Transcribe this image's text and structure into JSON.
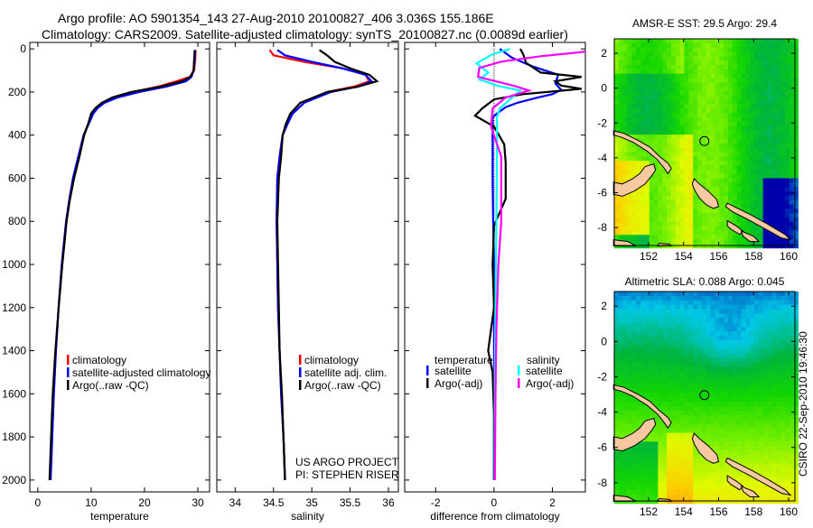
{
  "figure": {
    "title_line1": "Argo profile: AO 5901354_143 27-Aug-2010 20100827_406 3.036S 155.186E",
    "title_line2": "Climatology: CARS2009. Satellite-adjusted climatology: synTS_20100827.nc (0.0089d earlier)",
    "project": "US ARGO PROJECT",
    "pi": "PI: STEPHEN RISER",
    "stamp": "CSIRO 22-Sep-2010 19:46:30"
  },
  "colors": {
    "climatology": "#ff0000",
    "satellite": "#0000ff",
    "argo": "#000000",
    "sal_satellite": "#00ffff",
    "sal_argo": "#ff00ff",
    "land": "#f8c8a0"
  },
  "chart_data": [
    {
      "type": "line",
      "title": "",
      "xlabel": "temperature",
      "ylabel": "",
      "xlim": [
        -1.5,
        32.2
      ],
      "ylim": [
        2055,
        -30
      ],
      "xticks": [
        0,
        10,
        20,
        30
      ],
      "yticks": [
        0,
        200,
        400,
        600,
        800,
        1000,
        1200,
        1400,
        1600,
        1800,
        2000
      ],
      "legend": [
        "climatology",
        "satellite-adjusted climatology",
        "Argo(..raw -QC)"
      ],
      "series": [
        {
          "name": "climatology",
          "color": "#ff0000",
          "depth": [
            5,
            50,
            100,
            130,
            150,
            175,
            200,
            225,
            250,
            275,
            300,
            350,
            400,
            500,
            600,
            700,
            800,
            900,
            1000,
            1200,
            1400,
            1600,
            1800,
            2000
          ],
          "values": [
            29.6,
            29.5,
            29.3,
            28.5,
            26,
            22.5,
            18,
            14.5,
            12.2,
            11,
            10.2,
            9.4,
            8.6,
            7.6,
            6.6,
            5.9,
            5.3,
            4.9,
            4.5,
            3.9,
            3.4,
            3.0,
            2.7,
            2.4
          ]
        },
        {
          "name": "satellite-adjusted climatology",
          "color": "#0000ff",
          "depth": [
            5,
            50,
            100,
            130,
            150,
            175,
            200,
            225,
            250,
            275,
            300,
            350,
            400,
            500,
            600,
            700,
            800,
            900,
            1000,
            1200,
            1400,
            1600,
            1800,
            2000
          ],
          "values": [
            29.5,
            29.4,
            29.2,
            28.8,
            27.8,
            24,
            19,
            15,
            12.5,
            11.2,
            10.4,
            9.5,
            8.6,
            7.6,
            6.6,
            5.9,
            5.3,
            4.9,
            4.5,
            3.9,
            3.4,
            3.0,
            2.7,
            2.4
          ]
        },
        {
          "name": "Argo(..raw -QC)",
          "color": "#000000",
          "depth": [
            5,
            50,
            100,
            130,
            150,
            175,
            200,
            225,
            250,
            275,
            300,
            350,
            400,
            500,
            600,
            700,
            800,
            900,
            1000,
            1200,
            1400,
            1600,
            1800,
            2000
          ],
          "values": [
            29.4,
            29.3,
            29.2,
            28.6,
            27,
            23,
            17.5,
            14,
            12,
            10.8,
            10,
            9.4,
            8.7,
            7.8,
            6.8,
            6.0,
            5.4,
            5.0,
            4.6,
            3.9,
            3.3,
            2.8,
            2.5,
            2.2
          ]
        }
      ]
    },
    {
      "type": "line",
      "xlabel": "salinity",
      "xlim": [
        33.76,
        36.13
      ],
      "ylim": [
        2055,
        -30
      ],
      "xticks": [
        34,
        34.5,
        35,
        35.5,
        36
      ],
      "xticklabels": [
        "34",
        "34.5",
        "35",
        "35.5",
        "36"
      ],
      "yticks": [
        0,
        200,
        400,
        600,
        800,
        1000,
        1200,
        1400,
        1600,
        1800,
        2000
      ],
      "legend": [
        "climatology",
        "satellite adj. clim.",
        "Argo(..raw -QC)"
      ],
      "series": [
        {
          "name": "climatology",
          "color": "#ff0000",
          "depth": [
            5,
            30,
            60,
            90,
            120,
            150,
            175,
            200,
            250,
            300,
            350,
            400,
            500,
            600,
            800,
            1000,
            1200,
            1400,
            1600,
            1800,
            2000
          ],
          "values": [
            34.45,
            34.5,
            34.9,
            35.4,
            35.7,
            35.75,
            35.55,
            35.2,
            34.9,
            34.75,
            34.68,
            34.62,
            34.58,
            34.55,
            34.54,
            34.55,
            34.56,
            34.58,
            34.6,
            34.63,
            34.65
          ]
        },
        {
          "name": "satellite adj. clim.",
          "color": "#0000ff",
          "depth": [
            5,
            30,
            60,
            90,
            120,
            150,
            175,
            200,
            250,
            300,
            350,
            400,
            500,
            600,
            800,
            1000,
            1200,
            1400,
            1600,
            1800,
            2000
          ],
          "values": [
            34.55,
            34.65,
            35.0,
            35.4,
            35.7,
            35.78,
            35.6,
            35.25,
            34.9,
            34.75,
            34.68,
            34.62,
            34.58,
            34.55,
            34.54,
            34.55,
            34.56,
            34.58,
            34.6,
            34.63,
            34.65
          ]
        },
        {
          "name": "Argo(..raw -QC)",
          "color": "#000000",
          "depth": [
            5,
            30,
            60,
            90,
            120,
            150,
            175,
            200,
            250,
            300,
            350,
            400,
            500,
            600,
            800,
            1000,
            1200,
            1400,
            1600,
            1800,
            2000
          ],
          "values": [
            35.1,
            35.2,
            35.3,
            35.5,
            35.75,
            35.85,
            35.6,
            35.2,
            34.85,
            34.72,
            34.66,
            34.62,
            34.6,
            34.57,
            34.55,
            34.56,
            34.57,
            34.58,
            34.61,
            34.63,
            34.65
          ]
        }
      ]
    },
    {
      "type": "line",
      "xlabel": "difference from climatology",
      "xlim": [
        -3.06,
        3.13
      ],
      "ylim": [
        2055,
        -30
      ],
      "xticks": [
        -2,
        0,
        2
      ],
      "yticks": [
        0,
        200,
        400,
        600,
        800,
        1000,
        1200,
        1400,
        1600,
        1800,
        2000
      ],
      "legend_headers": [
        "temperature",
        "salinity"
      ],
      "legend": [
        "satellite",
        "Argo(-adj)",
        "satellite",
        "Argo(-adj)"
      ],
      "series": [
        {
          "name": "temperature satellite",
          "color": "#0000ff",
          "depth": [
            0,
            40,
            80,
            120,
            160,
            190,
            210,
            226,
            250,
            270,
            300,
            318,
            400,
            600,
            800,
            1000,
            1400,
            1800,
            2000
          ],
          "values": [
            0.2,
            0.6,
            1.3,
            2.2,
            2.1,
            2.3,
            2.0,
            1.5,
            0.8,
            0.4,
            0.1,
            -0.05,
            -0.05,
            -0.05,
            -0.03,
            0,
            0,
            0,
            0
          ]
        },
        {
          "name": "temperature Argo(-adj)",
          "color": "#000000",
          "depth": [
            0,
            25,
            65,
            110,
            130,
            150,
            170,
            185,
            210,
            234,
            276,
            310,
            360,
            443,
            527,
            695,
            820,
            1000,
            1200,
            1400,
            1500,
            1700,
            2000
          ],
          "values": [
            0.9,
            1.0,
            1.1,
            1.6,
            3.0,
            2.1,
            2.3,
            3.0,
            1.0,
            0,
            -0.4,
            -0.65,
            0,
            0.35,
            0.4,
            0.4,
            0,
            -0.05,
            0,
            -0.2,
            -0.05,
            0,
            0
          ]
        },
        {
          "name": "salinity satellite",
          "color": "#00ffff",
          "depth": [
            0,
            25,
            67,
            110,
            142,
            172,
            193,
            234,
            276,
            318,
            500,
            800,
            1200,
            1500,
            2000
          ],
          "values": [
            0.55,
            -0.05,
            -0.6,
            -0.2,
            -0.5,
            0.15,
            0.9,
            0.55,
            0.2,
            0.1,
            0.1,
            0.08,
            0.05,
            0.03,
            0.02
          ]
        },
        {
          "name": "salinity Argo(-adj)",
          "color": "#ff00ff",
          "depth": [
            10,
            15,
            34,
            59,
            88,
            130,
            172,
            193,
            226,
            276,
            360,
            500,
            800,
            1000,
            1300,
            1600,
            2000
          ],
          "values": [
            3.2,
            3.0,
            1.6,
            0.25,
            -0.5,
            -0.55,
            0.7,
            1.2,
            0.4,
            -0.05,
            -0.1,
            0.25,
            0.25,
            0.15,
            0.08,
            0.05,
            0.03
          ]
        }
      ]
    },
    {
      "type": "heatmap",
      "title": "AMSR-E SST: 29.5 Argo: 29.4",
      "xlim": [
        150.04,
        160.36
      ],
      "ylim": [
        -9.03,
        2.83
      ],
      "xticks": [
        152,
        154,
        156,
        158,
        160
      ],
      "yticks": [
        2,
        0,
        -2,
        -4,
        -6,
        -8
      ],
      "argo_position": {
        "lon": 155.186,
        "lat": -3.036
      }
    },
    {
      "type": "heatmap",
      "title": "Altimetric SLA: 0.088 Argo: 0.045",
      "xlim": [
        150.04,
        160.36
      ],
      "ylim": [
        -9.03,
        2.83
      ],
      "xticks": [
        152,
        154,
        156,
        158,
        160
      ],
      "yticks": [
        2,
        0,
        -2,
        -4,
        -6,
        -8
      ],
      "argo_position": {
        "lon": 155.186,
        "lat": -3.036
      }
    }
  ]
}
